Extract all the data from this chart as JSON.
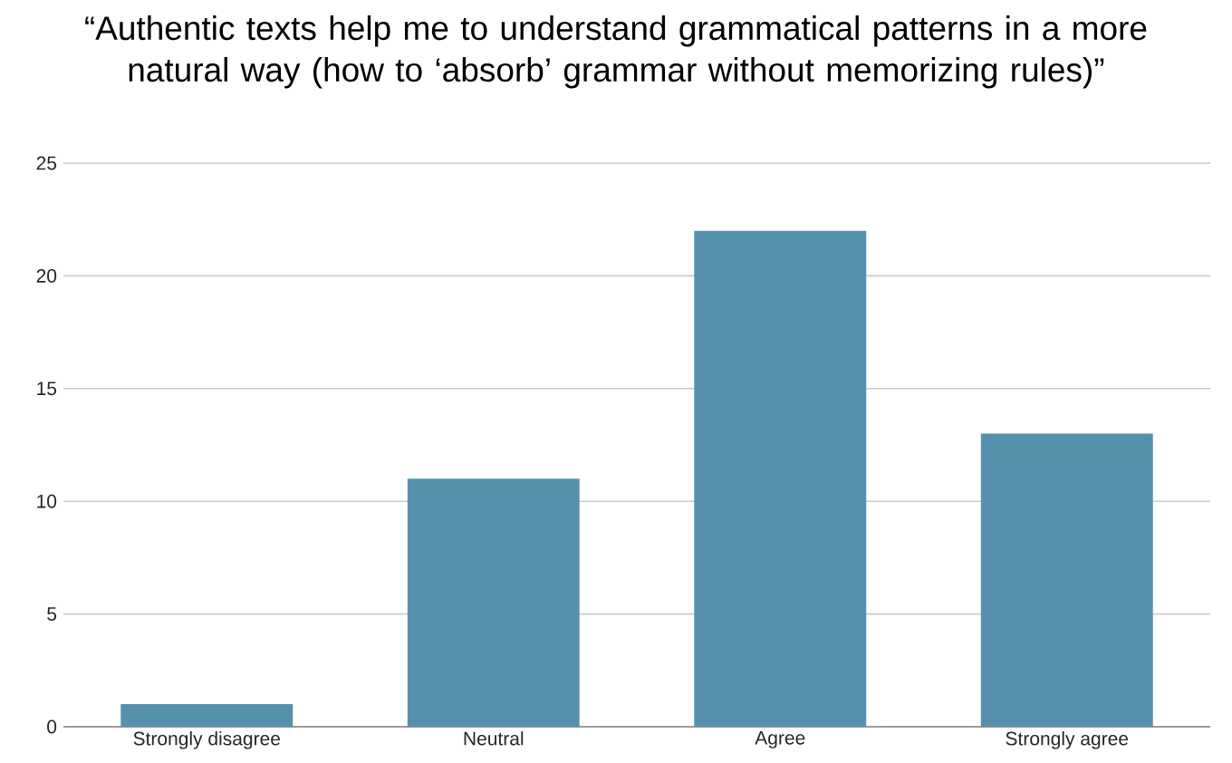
{
  "chart_data": {
    "type": "bar",
    "title": "“Authentic texts help me to understand grammatical patterns in a more natural way (how to ‘absorb’ grammar without memorizing rules)”",
    "categories": [
      "Strongly disagree",
      "Neutral",
      "Agree",
      "Strongly agree"
    ],
    "values": [
      1,
      11,
      22,
      13
    ],
    "color": "#5591ad",
    "ylim": [
      0,
      25
    ],
    "yticks": [
      0,
      5,
      10,
      15,
      20,
      25
    ],
    "grid": "y"
  }
}
